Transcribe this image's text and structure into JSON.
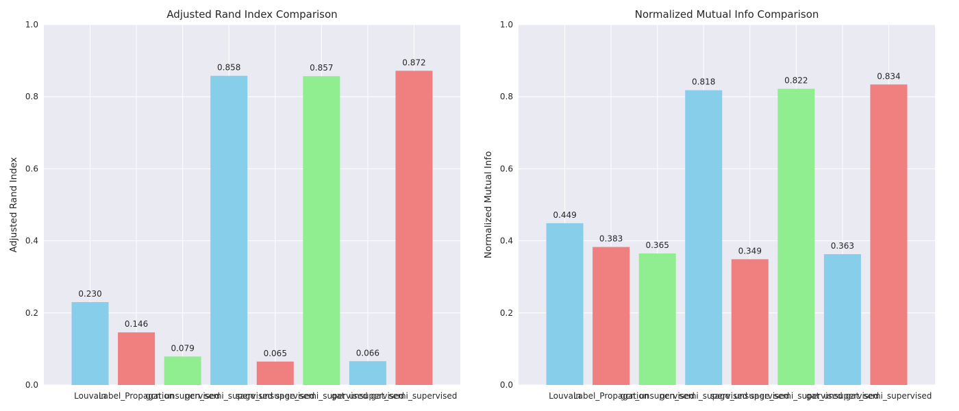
{
  "chart_data": [
    {
      "type": "bar",
      "title": "Adjusted Rand Index Comparison",
      "xlabel": "",
      "ylabel": "Adjusted Rand Index",
      "ylim": [
        0,
        1.0
      ],
      "yticks": [
        "0.0",
        "0.2",
        "0.4",
        "0.6",
        "0.8",
        "1.0"
      ],
      "grid": true,
      "categories": [
        "Louvain",
        "Label_Propagation",
        "gcn_unsupervised",
        "gcn_semi_supervised",
        "sage_unsupervised",
        "sage_semi_supervised",
        "gat_unsupervised",
        "gat_semi_supervised"
      ],
      "values": [
        0.23,
        0.146,
        0.079,
        0.858,
        0.065,
        0.857,
        0.066,
        0.872
      ],
      "value_labels": [
        "0.230",
        "0.146",
        "0.079",
        "0.858",
        "0.065",
        "0.857",
        "0.066",
        "0.872"
      ],
      "colors": [
        "#87CEEB",
        "#F08080",
        "#90EE90",
        "#87CEEB",
        "#F08080",
        "#90EE90",
        "#87CEEB",
        "#F08080"
      ]
    },
    {
      "type": "bar",
      "title": "Normalized Mutual Info Comparison",
      "xlabel": "",
      "ylabel": "Normalized Mutual Info",
      "ylim": [
        0,
        1.0
      ],
      "yticks": [
        "0.0",
        "0.2",
        "0.4",
        "0.6",
        "0.8",
        "1.0"
      ],
      "grid": true,
      "categories": [
        "Louvain",
        "Label_Propagation",
        "gcn_unsupervised",
        "gcn_semi_supervised",
        "sage_unsupervised",
        "sage_semi_supervised",
        "gat_unsupervised",
        "gat_semi_supervised"
      ],
      "values": [
        0.449,
        0.383,
        0.365,
        0.818,
        0.349,
        0.822,
        0.363,
        0.834
      ],
      "value_labels": [
        "0.449",
        "0.383",
        "0.365",
        "0.818",
        "0.349",
        "0.822",
        "0.363",
        "0.834"
      ],
      "colors": [
        "#87CEEB",
        "#F08080",
        "#90EE90",
        "#87CEEB",
        "#F08080",
        "#90EE90",
        "#87CEEB",
        "#F08080"
      ]
    }
  ],
  "style": {
    "plot_background": "#EAEAF2",
    "grid_color": "#FFFFFF",
    "text_color": "#262626"
  }
}
